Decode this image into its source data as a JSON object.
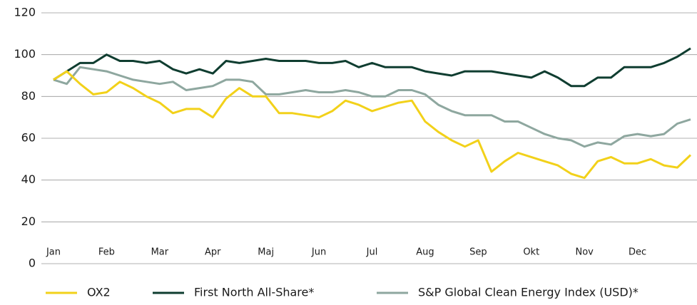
{
  "chart_data": {
    "type": "line",
    "categories": [
      "Jan",
      null,
      null,
      null,
      "Feb",
      null,
      null,
      null,
      "Mar",
      null,
      null,
      null,
      "Apr",
      null,
      null,
      null,
      "Maj",
      null,
      null,
      null,
      "Jun",
      null,
      null,
      null,
      "Jul",
      null,
      null,
      null,
      "Aug",
      null,
      null,
      null,
      "Sep",
      null,
      null,
      null,
      "Okt",
      null,
      null,
      null,
      "Nov",
      null,
      null,
      null,
      "Dec",
      null,
      null,
      null,
      null
    ],
    "series": [
      {
        "name": "OX2",
        "color": "#f2d11a",
        "values": [
          88,
          92,
          86,
          81,
          82,
          87,
          84,
          80,
          77,
          72,
          74,
          74,
          70,
          79,
          84,
          80,
          80,
          72,
          72,
          71,
          70,
          73,
          78,
          76,
          73,
          75,
          77,
          78,
          68,
          63,
          59,
          56,
          59,
          44,
          49,
          53,
          51,
          49,
          47,
          43,
          41,
          49,
          51,
          48,
          48,
          50,
          47,
          46,
          52
        ]
      },
      {
        "name": "First North All-Share*",
        "color": "#0f3d30",
        "values": [
          88,
          92,
          96,
          96,
          100,
          97,
          97,
          96,
          97,
          93,
          91,
          93,
          91,
          97,
          96,
          97,
          98,
          97,
          97,
          97,
          96,
          96,
          97,
          94,
          96,
          94,
          94,
          94,
          92,
          91,
          90,
          92,
          92,
          92,
          91,
          90,
          89,
          92,
          89,
          85,
          85,
          89,
          89,
          94,
          94,
          94,
          96,
          99,
          103
        ]
      },
      {
        "name": "S&P Global Clean Energy Index (USD)*",
        "color": "#8ea79f",
        "values": [
          88,
          86,
          94,
          93,
          92,
          90,
          88,
          87,
          86,
          87,
          83,
          84,
          85,
          88,
          88,
          87,
          81,
          81,
          82,
          83,
          82,
          82,
          83,
          82,
          80,
          80,
          83,
          83,
          81,
          76,
          73,
          71,
          71,
          71,
          68,
          68,
          65,
          62,
          60,
          59,
          56,
          58,
          57,
          61,
          62,
          61,
          62,
          67,
          69
        ]
      }
    ],
    "ylim": [
      0,
      120
    ],
    "yticks": [
      0,
      20,
      40,
      60,
      80,
      100,
      120
    ],
    "grid": true,
    "legend": "bottom"
  }
}
